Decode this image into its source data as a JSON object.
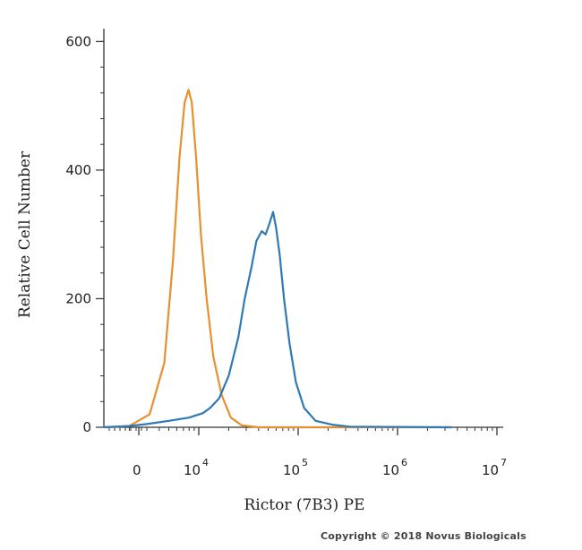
{
  "chart_data": {
    "type": "line",
    "title": "",
    "xlabel": "Rictor (7B3) PE",
    "ylabel": "Relative Cell Number",
    "x_scale": "log",
    "ylim": [
      0,
      620
    ],
    "y_ticks": [
      0,
      200,
      400,
      600
    ],
    "x_ticks": [
      {
        "label": "0",
        "value": 1000
      },
      {
        "label": "10",
        "exp": "4",
        "value": 10000
      },
      {
        "label": "10",
        "exp": "5",
        "value": 100000
      },
      {
        "label": "10",
        "exp": "6",
        "value": 1000000
      },
      {
        "label": "10",
        "exp": "7",
        "value": 10000000
      }
    ],
    "grid": false,
    "series": [
      {
        "color": "#e8902f",
        "x": [
          180,
          2000,
          3200,
          4500,
          5500,
          6400,
          7200,
          7900,
          8500,
          9400,
          10500,
          12000,
          14000,
          17000,
          21000,
          27000,
          40000,
          3500000
        ],
        "y": [
          0,
          2,
          20,
          100,
          260,
          420,
          505,
          525,
          505,
          420,
          300,
          200,
          110,
          50,
          15,
          3,
          0,
          0
        ]
      },
      {
        "color": "#2f79b5",
        "x": [
          180,
          2000,
          3000,
          5000,
          8000,
          11000,
          13000,
          16000,
          20000,
          25000,
          29000,
          34000,
          38000,
          43000,
          47000,
          51000,
          56000,
          60000,
          65000,
          72000,
          82000,
          95000,
          115000,
          150000,
          220000,
          330000,
          3500000
        ],
        "y": [
          0,
          2,
          5,
          10,
          15,
          22,
          30,
          45,
          80,
          140,
          200,
          250,
          290,
          305,
          300,
          315,
          335,
          310,
          270,
          200,
          130,
          70,
          30,
          10,
          4,
          1,
          0
        ]
      }
    ]
  },
  "copyright": "Copyright © 2018 Novus Biologicals"
}
